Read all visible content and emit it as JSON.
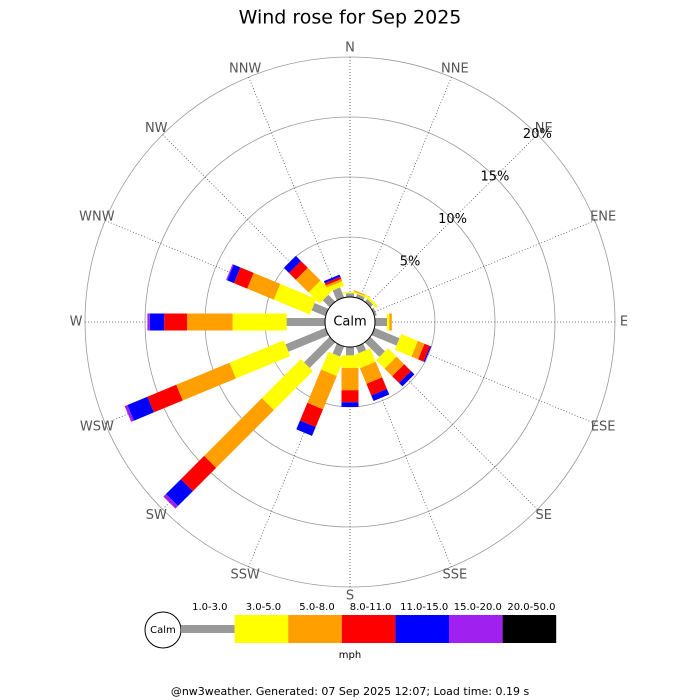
{
  "chart_data": {
    "type": "wind-rose",
    "title": "Wind rose for Sep 2025",
    "calm_label": "Calm",
    "unit_label": "mph",
    "footer": "@nw3weather. Generated: 07 Sep 2025 12:07; Load time: 0.19 s",
    "categories": [
      "N",
      "NNE",
      "NE",
      "ENE",
      "E",
      "ESE",
      "SE",
      "SSE",
      "S",
      "SSW",
      "SW",
      "WSW",
      "W",
      "WNW",
      "NW",
      "NNW"
    ],
    "rlim": [
      0,
      20
    ],
    "rticks": [
      {
        "value": 5,
        "label": "5%"
      },
      {
        "value": 10,
        "label": "10%"
      },
      {
        "value": 15,
        "label": "15%"
      },
      {
        "value": 20,
        "label": "20%"
      }
    ],
    "series": [
      {
        "name": "1.0-3.0",
        "color": "#999999",
        "values": [
          0.3,
          0.3,
          0.3,
          0.2,
          1.0,
          2.25,
          1.7,
          0.6,
          0.7,
          0.9,
          3.0,
          3.6,
          3.2,
          1.25,
          0.8,
          0.9
        ]
      },
      {
        "name": "3.0-5.0",
        "color": "#ffff00",
        "values": [
          0.1,
          0.1,
          0.2,
          0,
          0.2,
          1.5,
          1.0,
          1.2,
          1.05,
          1.6,
          4.6,
          4.9,
          4.5,
          3.25,
          1.3,
          0.4
        ]
      },
      {
        "name": "5.0-8.0",
        "color": "#ffa000",
        "values": [
          0,
          0.1,
          0,
          0,
          0.2,
          0.6,
          0.9,
          1.4,
          1.85,
          3.0,
          6.8,
          4.8,
          3.8,
          2.4,
          1.5,
          0.2
        ]
      },
      {
        "name": "8.0-11.0",
        "color": "#ff0000",
        "values": [
          0,
          0,
          0,
          0,
          0,
          0.5,
          0.8,
          1.05,
          1.0,
          1.6,
          2.75,
          2.6,
          1.9,
          1.2,
          0.8,
          0.2
        ]
      },
      {
        "name": "11.0-15.0",
        "color": "#0000ff",
        "values": [
          0,
          0,
          0,
          0,
          0,
          0.1,
          0.4,
          0.5,
          0.4,
          0.8,
          1.75,
          1.8,
          1.2,
          0.6,
          0.6,
          0.2
        ]
      },
      {
        "name": "15.0-20.0",
        "color": "#a020f0",
        "values": [
          0,
          0,
          0,
          0,
          0,
          0,
          0,
          0,
          0,
          0,
          0.3,
          0.25,
          0.2,
          0.1,
          0,
          0
        ]
      },
      {
        "name": "20.0-50.0",
        "color": "#000000",
        "values": [
          0,
          0,
          0,
          0,
          0,
          0,
          0,
          0,
          0,
          0,
          0,
          0,
          0,
          0,
          0,
          0
        ]
      }
    ]
  }
}
